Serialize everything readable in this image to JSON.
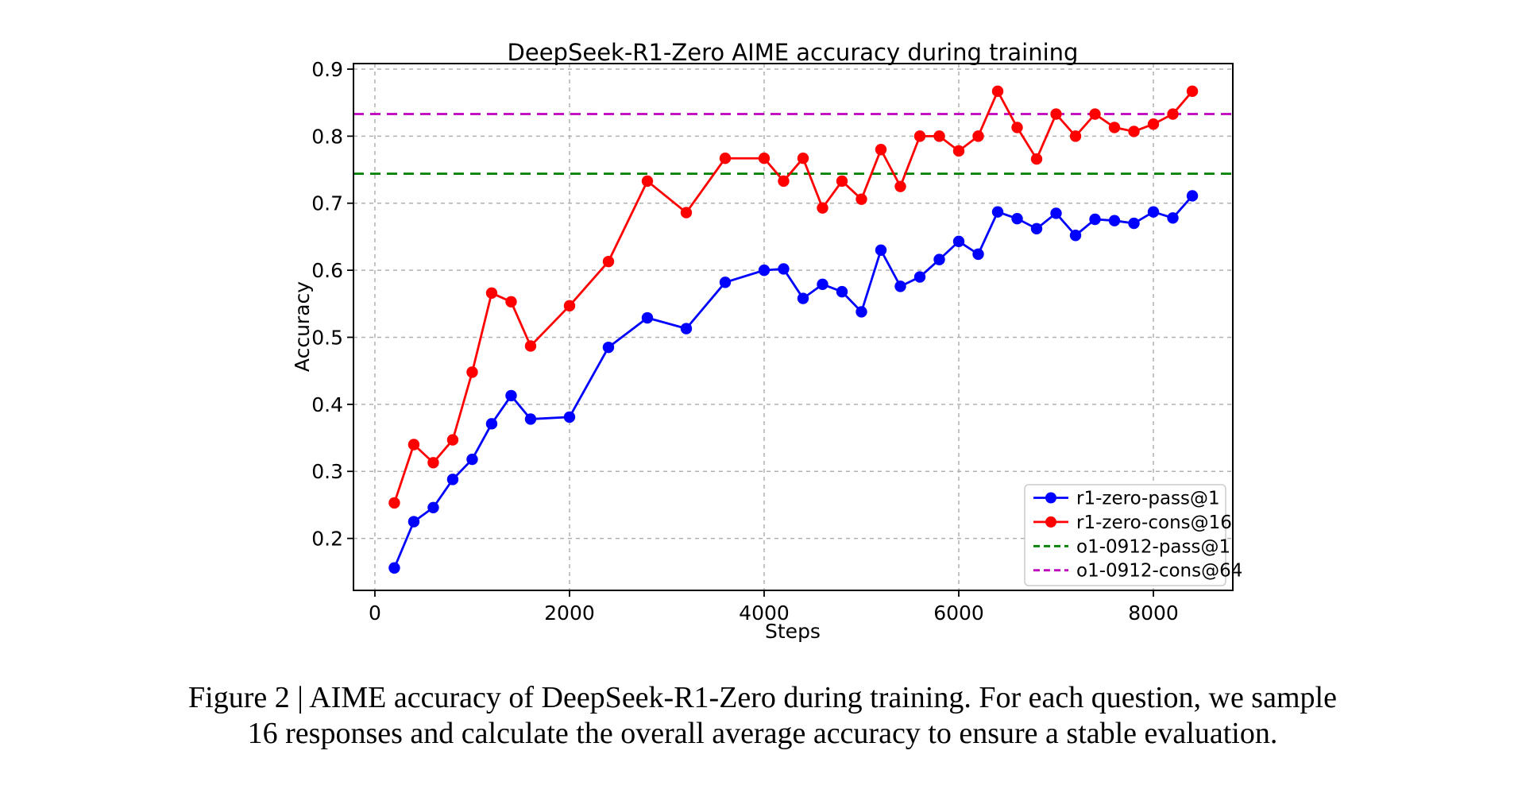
{
  "figure": {
    "title": "DeepSeek-R1-Zero AIME accuracy during training",
    "xlabel": "Steps",
    "ylabel": "Accuracy"
  },
  "caption": {
    "line1": "Figure 2 | AIME accuracy of DeepSeek-R1-Zero during training. For each question, we sample",
    "line2": "16 responses and calculate the overall average accuracy to ensure a stable evaluation."
  },
  "chart_data": {
    "type": "line",
    "title": "DeepSeek-R1-Zero AIME accuracy during training",
    "xlabel": "Steps",
    "ylabel": "Accuracy",
    "grid": true,
    "legend_position": "lower right",
    "xlim": [
      -220,
      8816
    ],
    "ylim": [
      0.1225,
      0.9083
    ],
    "x_ticks": [
      0,
      2000,
      4000,
      6000,
      8000
    ],
    "x_tick_labels": [
      "0",
      "2000",
      "4000",
      "6000",
      "8000"
    ],
    "y_ticks": [
      0.2,
      0.3,
      0.4,
      0.5,
      0.6,
      0.7,
      0.8,
      0.9
    ],
    "y_tick_labels": [
      "0.2",
      "0.3",
      "0.4",
      "0.5",
      "0.6",
      "0.7",
      "0.8",
      "0.9"
    ],
    "steps": [
      200,
      400,
      600,
      800,
      1000,
      1200,
      1400,
      1600,
      2000,
      2400,
      2800,
      3200,
      3600,
      4000,
      4200,
      4400,
      4600,
      4800,
      5000,
      5200,
      5400,
      5600,
      5800,
      6000,
      6200,
      6400,
      6600,
      6800,
      7000,
      7200,
      7400,
      7600,
      7800,
      8000,
      8200,
      8400
    ],
    "series": [
      {
        "name": "r1-zero-pass@1",
        "color": "#0000ff",
        "style": "line-marker",
        "values": [
          0.156,
          0.225,
          0.246,
          0.288,
          0.318,
          0.371,
          0.413,
          0.378,
          0.381,
          0.485,
          0.529,
          0.513,
          0.582,
          0.6,
          0.602,
          0.558,
          0.579,
          0.568,
          0.538,
          0.63,
          0.576,
          0.59,
          0.616,
          0.643,
          0.624,
          0.687,
          0.677,
          0.662,
          0.685,
          0.652,
          0.676,
          0.674,
          0.67,
          0.687,
          0.678,
          0.711
        ]
      },
      {
        "name": "r1-zero-cons@16",
        "color": "#ff0000",
        "style": "line-marker",
        "values": [
          0.253,
          0.34,
          0.313,
          0.347,
          0.448,
          0.566,
          0.553,
          0.487,
          0.547,
          0.613,
          0.733,
          0.686,
          0.767,
          0.767,
          0.733,
          0.767,
          0.693,
          0.733,
          0.706,
          0.78,
          0.725,
          0.8,
          0.8,
          0.778,
          0.8,
          0.867,
          0.813,
          0.766,
          0.833,
          0.8,
          0.833,
          0.813,
          0.807,
          0.818,
          0.833,
          0.867
        ]
      },
      {
        "name": "o1-0912-pass@1",
        "color": "#008000",
        "style": "dashed-hline",
        "value": 0.744
      },
      {
        "name": "o1-0912-cons@64",
        "color": "#bf00bf",
        "style": "dashed-hline",
        "value": 0.833
      }
    ]
  }
}
